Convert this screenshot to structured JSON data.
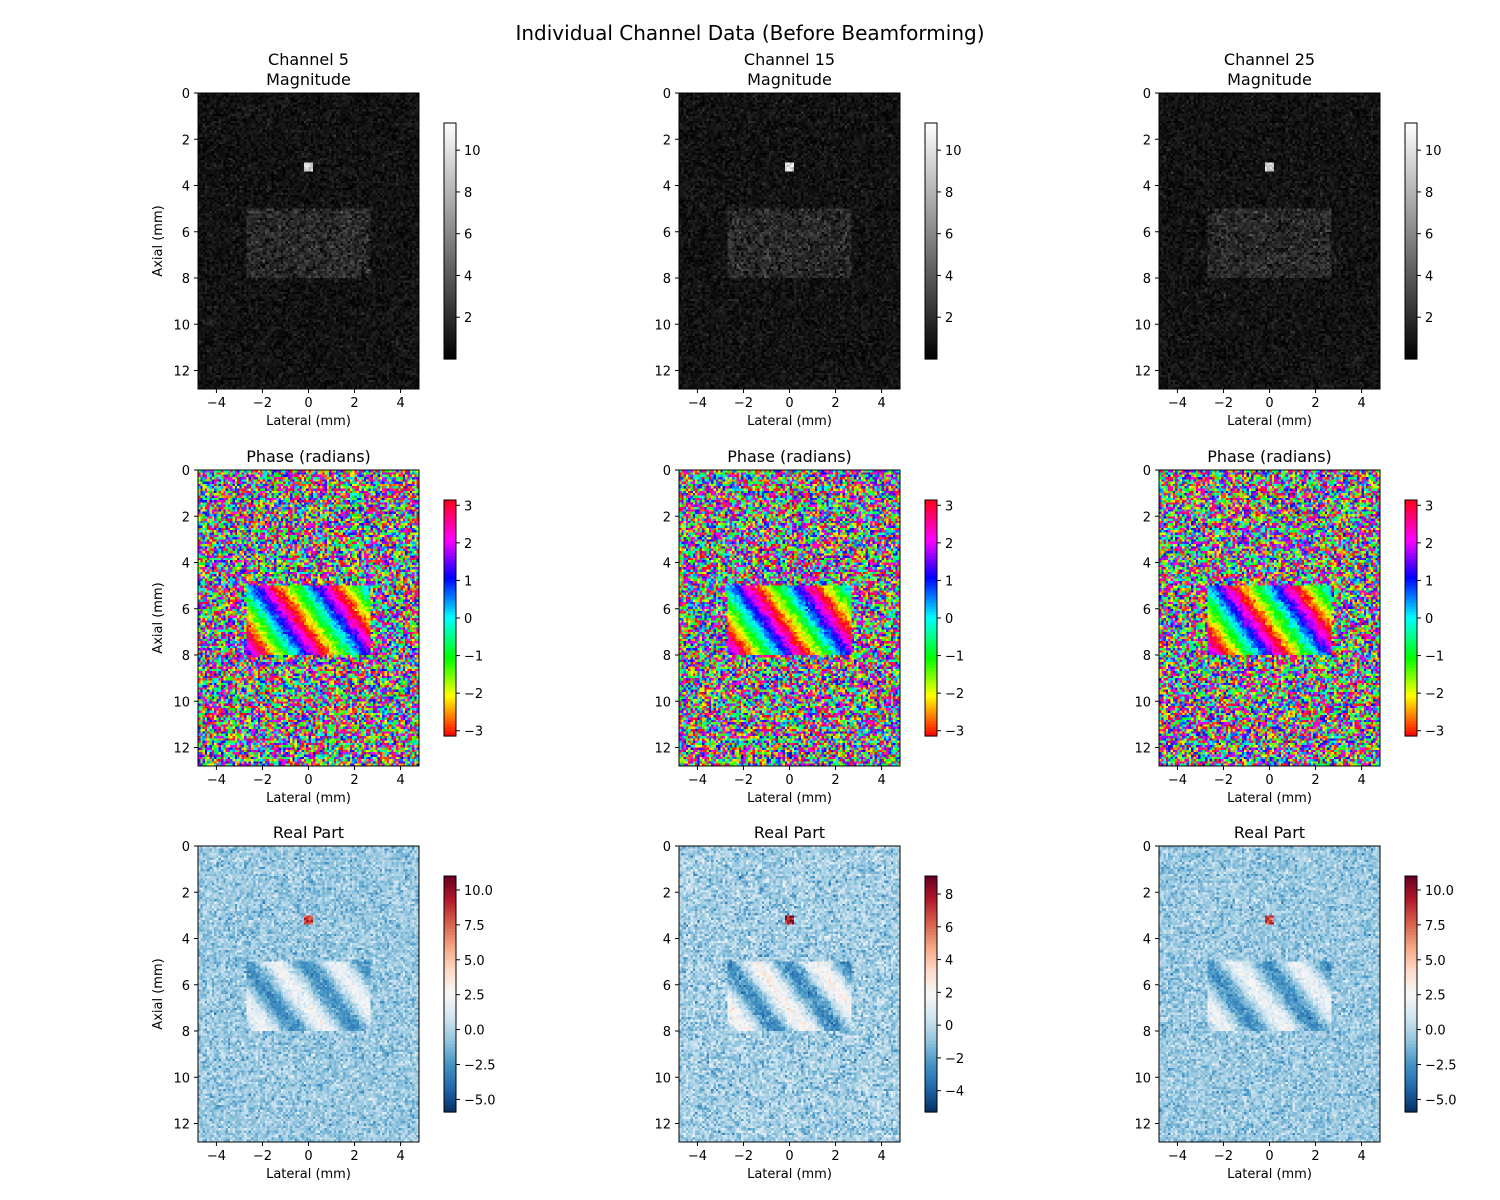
{
  "figure": {
    "title": "Individual Channel Data (Before Beamforming)"
  },
  "chart_data": [
    {
      "type": "heatmap",
      "row": "magnitude",
      "channel": 5,
      "title_lines": [
        "Channel 5",
        "Magnitude"
      ],
      "xlabel": "Lateral (mm)",
      "ylabel": "Axial (mm)",
      "xlim": [
        -4.8,
        4.8
      ],
      "ylim": [
        12.8,
        0
      ],
      "xticks": [
        -4,
        -2,
        0,
        2,
        4
      ],
      "yticks": [
        0,
        2,
        4,
        6,
        8,
        10,
        12
      ],
      "colormap": "gray",
      "clim": [
        0,
        11.3
      ],
      "colorbar_ticks": [
        2,
        4,
        6,
        8,
        10
      ],
      "features": {
        "point_target": {
          "x": 0,
          "y": 3.2,
          "value": 10
        },
        "cyst_region": {
          "x": [
            -2.7,
            2.7
          ],
          "y": [
            5,
            8
          ],
          "value": 1.8
        },
        "background": 0.8
      }
    },
    {
      "type": "heatmap",
      "row": "magnitude",
      "channel": 15,
      "title_lines": [
        "Channel 15",
        "Magnitude"
      ],
      "xlabel": "Lateral (mm)",
      "ylabel": "",
      "xlim": [
        -4.8,
        4.8
      ],
      "ylim": [
        12.8,
        0
      ],
      "xticks": [
        -4,
        -2,
        0,
        2,
        4
      ],
      "yticks": [
        0,
        2,
        4,
        6,
        8,
        10,
        12
      ],
      "colormap": "gray",
      "clim": [
        0,
        11.3
      ],
      "colorbar_ticks": [
        2,
        4,
        6,
        8,
        10
      ],
      "features": {
        "point_target": {
          "x": 0,
          "y": 3.2,
          "value": 10
        },
        "cyst_region": {
          "x": [
            -2.7,
            2.7
          ],
          "y": [
            5,
            8
          ],
          "value": 1.8
        },
        "background": 0.8
      }
    },
    {
      "type": "heatmap",
      "row": "magnitude",
      "channel": 25,
      "title_lines": [
        "Channel 25",
        "Magnitude"
      ],
      "xlabel": "Lateral (mm)",
      "ylabel": "",
      "xlim": [
        -4.8,
        4.8
      ],
      "ylim": [
        12.8,
        0
      ],
      "xticks": [
        -4,
        -2,
        0,
        2,
        4
      ],
      "yticks": [
        0,
        2,
        4,
        6,
        8,
        10,
        12
      ],
      "colormap": "gray",
      "clim": [
        0,
        11.3
      ],
      "colorbar_ticks": [
        2,
        4,
        6,
        8,
        10
      ],
      "features": {
        "point_target": {
          "x": 0,
          "y": 3.2,
          "value": 10
        },
        "cyst_region": {
          "x": [
            -2.7,
            2.7
          ],
          "y": [
            5,
            8
          ],
          "value": 1.8
        },
        "background": 0.8
      }
    },
    {
      "type": "heatmap",
      "row": "phase",
      "channel": 5,
      "title_lines": [
        "Phase (radians)"
      ],
      "xlabel": "Lateral (mm)",
      "ylabel": "Axial (mm)",
      "xlim": [
        -4.8,
        4.8
      ],
      "ylim": [
        12.8,
        0
      ],
      "xticks": [
        -4,
        -2,
        0,
        2,
        4
      ],
      "yticks": [
        0,
        2,
        4,
        6,
        8,
        10,
        12
      ],
      "colormap": "hsv",
      "clim": [
        -3.14,
        3.14
      ],
      "colorbar_ticks": [
        -3,
        -2,
        -1,
        0,
        1,
        2,
        3
      ],
      "features": {
        "cyst_region": {
          "x": [
            -2.7,
            2.7
          ],
          "y": [
            5,
            8
          ]
        },
        "stripes": "diagonal phase ramp inside region, random phase elsewhere"
      }
    },
    {
      "type": "heatmap",
      "row": "phase",
      "channel": 15,
      "title_lines": [
        "Phase (radians)"
      ],
      "xlabel": "Lateral (mm)",
      "ylabel": "",
      "xlim": [
        -4.8,
        4.8
      ],
      "ylim": [
        12.8,
        0
      ],
      "xticks": [
        -4,
        -2,
        0,
        2,
        4
      ],
      "yticks": [
        0,
        2,
        4,
        6,
        8,
        10,
        12
      ],
      "colormap": "hsv",
      "clim": [
        -3.14,
        3.14
      ],
      "colorbar_ticks": [
        -3,
        -2,
        -1,
        0,
        1,
        2,
        3
      ],
      "features": {
        "cyst_region": {
          "x": [
            -2.7,
            2.7
          ],
          "y": [
            5,
            8
          ]
        },
        "stripes": "diagonal phase ramp inside region, random phase elsewhere"
      }
    },
    {
      "type": "heatmap",
      "row": "phase",
      "channel": 25,
      "title_lines": [
        "Phase (radians)"
      ],
      "xlabel": "Lateral (mm)",
      "ylabel": "",
      "xlim": [
        -4.8,
        4.8
      ],
      "ylim": [
        12.8,
        0
      ],
      "xticks": [
        -4,
        -2,
        0,
        2,
        4
      ],
      "yticks": [
        0,
        2,
        4,
        6,
        8,
        10,
        12
      ],
      "colormap": "hsv",
      "clim": [
        -3.14,
        3.14
      ],
      "colorbar_ticks": [
        -3,
        -2,
        -1,
        0,
        1,
        2,
        3
      ],
      "features": {
        "cyst_region": {
          "x": [
            -2.7,
            2.7
          ],
          "y": [
            5,
            8
          ]
        },
        "stripes": "diagonal phase ramp inside region, random phase elsewhere"
      }
    },
    {
      "type": "heatmap",
      "row": "real",
      "channel": 5,
      "title_lines": [
        "Real Part"
      ],
      "xlabel": "Lateral (mm)",
      "ylabel": "Axial (mm)",
      "xlim": [
        -4.8,
        4.8
      ],
      "ylim": [
        12.8,
        0
      ],
      "xticks": [
        -4,
        -2,
        0,
        2,
        4
      ],
      "yticks": [
        0,
        2,
        4,
        6,
        8,
        10,
        12
      ],
      "colormap": "RdBu_r",
      "clim": [
        -5.9,
        11
      ],
      "colorbar_ticks": [
        -5.0,
        -2.5,
        0.0,
        2.5,
        5.0,
        7.5,
        10.0
      ],
      "colorbar_tick_labels": [
        "−5.0",
        "−2.5",
        "0.0",
        "2.5",
        "5.0",
        "7.5",
        "10.0"
      ]
    },
    {
      "type": "heatmap",
      "row": "real",
      "channel": 15,
      "title_lines": [
        "Real Part"
      ],
      "xlabel": "Lateral (mm)",
      "ylabel": "",
      "xlim": [
        -4.8,
        4.8
      ],
      "ylim": [
        12.8,
        0
      ],
      "xticks": [
        -4,
        -2,
        0,
        2,
        4
      ],
      "yticks": [
        0,
        2,
        4,
        6,
        8,
        10,
        12
      ],
      "colormap": "RdBu_r",
      "clim": [
        -5.3,
        9.1
      ],
      "colorbar_ticks": [
        -4,
        -2,
        0,
        2,
        4,
        6,
        8
      ],
      "colorbar_tick_labels": [
        "−4",
        "−2",
        "0",
        "2",
        "4",
        "6",
        "8"
      ]
    },
    {
      "type": "heatmap",
      "row": "real",
      "channel": 25,
      "title_lines": [
        "Real Part"
      ],
      "xlabel": "Lateral (mm)",
      "ylabel": "",
      "xlim": [
        -4.8,
        4.8
      ],
      "ylim": [
        12.8,
        0
      ],
      "xticks": [
        -4,
        -2,
        0,
        2,
        4
      ],
      "yticks": [
        0,
        2,
        4,
        6,
        8,
        10,
        12
      ],
      "colormap": "RdBu_r",
      "clim": [
        -5.9,
        11
      ],
      "colorbar_ticks": [
        -5.0,
        -2.5,
        0.0,
        2.5,
        5.0,
        7.5,
        10.0
      ],
      "colorbar_tick_labels": [
        "−5.0",
        "−2.5",
        "0.0",
        "2.5",
        "5.0",
        "7.5",
        "10.0"
      ]
    }
  ]
}
